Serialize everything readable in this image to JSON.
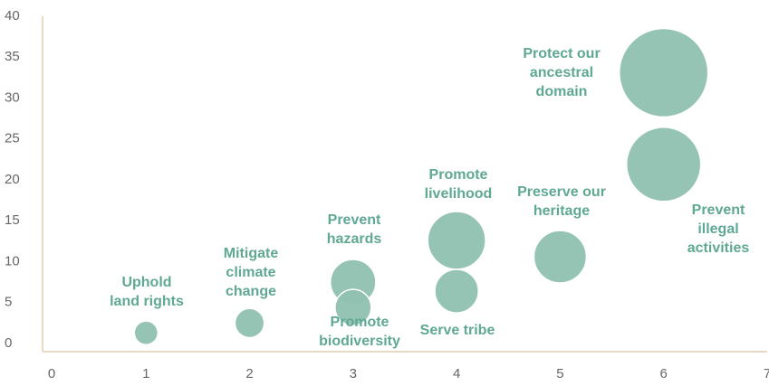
{
  "chart_data": {
    "type": "bubble",
    "x": [
      1,
      2,
      3,
      3,
      4,
      4,
      5,
      6,
      6
    ],
    "values": [
      1.3,
      2.5,
      7.5,
      4.4,
      12.6,
      6.4,
      10.6,
      21.9,
      33.1
    ],
    "sizes": [
      1.7,
      2.6,
      6.3,
      4,
      10.2,
      5.8,
      8.4,
      16.8,
      24
    ],
    "labels": [
      [
        "Uphold",
        "land rights"
      ],
      [
        "Mitigate",
        "climate",
        "change"
      ],
      [
        "Prevent",
        "hazards"
      ],
      [
        "Promote",
        "biodiversity"
      ],
      [
        "Promote",
        "livelihood"
      ],
      [
        "Serve tribe"
      ],
      [
        "Preserve our",
        "heritage"
      ],
      [
        "Prevent",
        "illegal",
        "activities"
      ],
      [
        "Protect our",
        "ancestral",
        "domain"
      ]
    ],
    "color": "#8fc1b1",
    "xlim": [
      0,
      7
    ],
    "xticks": [
      0,
      1,
      2,
      3,
      4,
      5,
      6,
      7
    ],
    "ylim": [
      -1,
      40
    ],
    "yticks": [
      0,
      5,
      10,
      15,
      20,
      25,
      30,
      35,
      40
    ]
  }
}
